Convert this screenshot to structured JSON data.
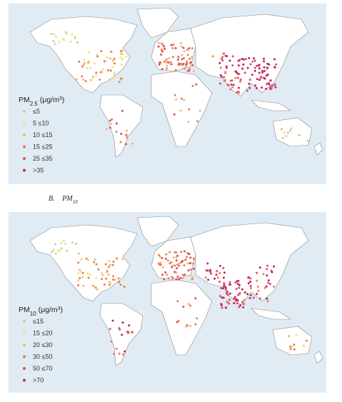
{
  "panels": [
    {
      "legend": {
        "title": {
          "base": "PM",
          "sub": "2.5",
          "unit": " (μg/m",
          "sup": "3",
          "end": ")"
        },
        "items": [
          {
            "label": "≤5",
            "color": "#b7d3b3"
          },
          {
            "label": "5 ≤10",
            "color": "#f1de86"
          },
          {
            "label": "10 ≤15",
            "color": "#f4b46a"
          },
          {
            "label": "15 ≤25",
            "color": "#ec7c50"
          },
          {
            "label": "25 ≤35",
            "color": "#d94b6a"
          },
          {
            "label": ">35",
            "color": "#c0245e"
          }
        ]
      }
    },
    {
      "legend": {
        "title": {
          "base": "PM",
          "sub": "10",
          "unit": " (μg/m",
          "sup": "3",
          "end": ")"
        },
        "items": [
          {
            "label": "≤15",
            "color": "#b7d3b3"
          },
          {
            "label": "15 ≤20",
            "color": "#f1de86"
          },
          {
            "label": "20 ≤30",
            "color": "#f4b46a"
          },
          {
            "label": "30 ≤50",
            "color": "#ec7c50"
          },
          {
            "label": "50 ≤70",
            "color": "#d94b6a"
          },
          {
            "label": ">70",
            "color": "#c0245e"
          }
        ]
      }
    }
  ],
  "caption": {
    "letter": "B.",
    "base": "PM",
    "sub": "10"
  }
}
